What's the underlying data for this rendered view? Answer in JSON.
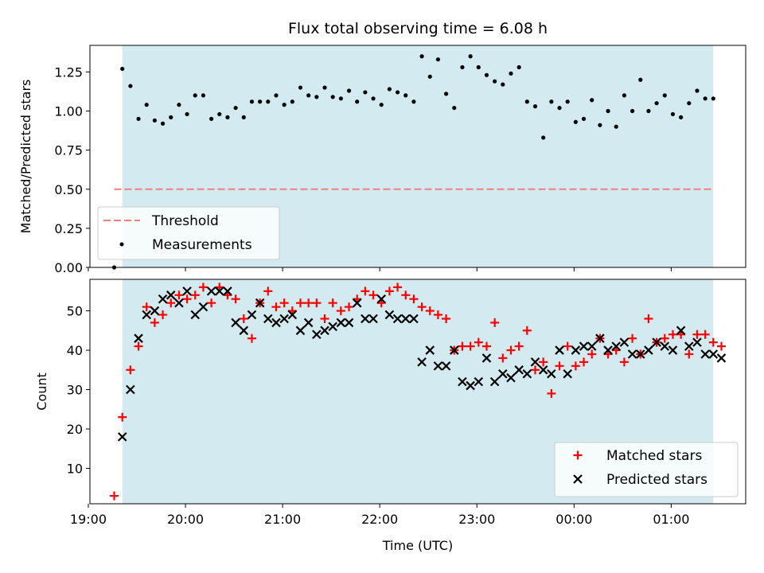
{
  "chart_data": [
    {
      "type": "scatter",
      "title": "Flux total observing time = 6.08 h",
      "ylabel": "Matched/Predicted stars",
      "ylim": [
        0,
        1.42
      ],
      "yticks": [
        "0.00",
        "0.25",
        "0.50",
        "0.75",
        "1.00",
        "1.25"
      ],
      "shaded_span": [
        "19:21",
        "01:26"
      ],
      "shade_color": "#d3eaf0",
      "threshold": {
        "name": "Threshold",
        "value": 0.5,
        "x_range": [
          "19:16",
          "01:26"
        ],
        "color": "#f08080"
      },
      "series": [
        {
          "name": "Measurements",
          "color": "#000000",
          "points": [
            [
              "19:16",
              0.0
            ],
            [
              "19:21",
              1.27
            ],
            [
              "19:26",
              1.16
            ],
            [
              "19:31",
              0.95
            ],
            [
              "19:36",
              1.04
            ],
            [
              "19:41",
              0.94
            ],
            [
              "19:46",
              0.92
            ],
            [
              "19:51",
              0.96
            ],
            [
              "19:56",
              1.04
            ],
            [
              "20:01",
              0.98
            ],
            [
              "20:06",
              1.1
            ],
            [
              "20:11",
              1.1
            ],
            [
              "20:16",
              0.95
            ],
            [
              "20:21",
              0.98
            ],
            [
              "20:26",
              0.96
            ],
            [
              "20:31",
              1.02
            ],
            [
              "20:36",
              0.96
            ],
            [
              "20:41",
              1.06
            ],
            [
              "20:46",
              1.06
            ],
            [
              "20:51",
              1.06
            ],
            [
              "20:56",
              1.1
            ],
            [
              "21:01",
              1.04
            ],
            [
              "21:06",
              1.06
            ],
            [
              "21:11",
              1.15
            ],
            [
              "21:16",
              1.1
            ],
            [
              "21:21",
              1.09
            ],
            [
              "21:26",
              1.15
            ],
            [
              "21:31",
              1.09
            ],
            [
              "21:36",
              1.08
            ],
            [
              "21:41",
              1.13
            ],
            [
              "21:46",
              1.06
            ],
            [
              "21:51",
              1.12
            ],
            [
              "21:56",
              1.08
            ],
            [
              "22:01",
              1.04
            ],
            [
              "22:06",
              1.14
            ],
            [
              "22:11",
              1.12
            ],
            [
              "22:16",
              1.1
            ],
            [
              "22:21",
              1.06
            ],
            [
              "22:26",
              1.35
            ],
            [
              "22:31",
              1.22
            ],
            [
              "22:36",
              1.33
            ],
            [
              "22:41",
              1.11
            ],
            [
              "22:46",
              1.02
            ],
            [
              "22:51",
              1.28
            ],
            [
              "22:56",
              1.35
            ],
            [
              "23:01",
              1.28
            ],
            [
              "23:06",
              1.23
            ],
            [
              "23:11",
              1.19
            ],
            [
              "23:16",
              1.17
            ],
            [
              "23:21",
              1.24
            ],
            [
              "23:26",
              1.28
            ],
            [
              "23:31",
              1.06
            ],
            [
              "23:36",
              1.03
            ],
            [
              "23:41",
              0.83
            ],
            [
              "23:46",
              1.06
            ],
            [
              "23:51",
              1.02
            ],
            [
              "23:56",
              1.06
            ],
            [
              "00:01",
              0.93
            ],
            [
              "00:06",
              0.95
            ],
            [
              "00:11",
              1.07
            ],
            [
              "00:16",
              0.91
            ],
            [
              "00:21",
              1.0
            ],
            [
              "00:26",
              0.9
            ],
            [
              "00:31",
              1.1
            ],
            [
              "00:36",
              1.0
            ],
            [
              "00:41",
              1.2
            ],
            [
              "00:46",
              1.0
            ],
            [
              "00:51",
              1.05
            ],
            [
              "00:56",
              1.1
            ],
            [
              "01:01",
              0.98
            ],
            [
              "01:06",
              0.96
            ],
            [
              "01:11",
              1.05
            ],
            [
              "01:16",
              1.13
            ],
            [
              "01:21",
              1.08
            ],
            [
              "01:26",
              1.08
            ]
          ]
        }
      ],
      "legend": {
        "position": "lower-left",
        "entries": [
          "Threshold",
          "Measurements"
        ]
      }
    },
    {
      "type": "scatter",
      "xlabel": "Time (UTC)",
      "ylabel": "Count",
      "ylim": [
        1,
        58
      ],
      "yticks": [
        "10",
        "20",
        "30",
        "40",
        "50"
      ],
      "xlim": [
        "19:01",
        "01:46"
      ],
      "xticks": [
        "19:00",
        "20:00",
        "21:00",
        "22:00",
        "23:00",
        "00:00",
        "01:00"
      ],
      "shaded_span": [
        "19:21",
        "01:26"
      ],
      "shade_color": "#d3eaf0",
      "series": [
        {
          "name": "Matched stars",
          "marker": "plus",
          "color": "#ff0000",
          "points": [
            [
              "19:16",
              3
            ],
            [
              "19:21",
              23
            ],
            [
              "19:26",
              35
            ],
            [
              "19:31",
              41
            ],
            [
              "19:36",
              51
            ],
            [
              "19:41",
              47
            ],
            [
              "19:46",
              49
            ],
            [
              "19:51",
              52
            ],
            [
              "19:56",
              54
            ],
            [
              "20:01",
              53
            ],
            [
              "20:06",
              54
            ],
            [
              "20:11",
              56
            ],
            [
              "20:16",
              52
            ],
            [
              "20:21",
              56
            ],
            [
              "20:26",
              54
            ],
            [
              "20:31",
              53
            ],
            [
              "20:36",
              48
            ],
            [
              "20:41",
              43
            ],
            [
              "20:46",
              52
            ],
            [
              "20:51",
              55
            ],
            [
              "20:56",
              51
            ],
            [
              "21:01",
              52
            ],
            [
              "21:06",
              50
            ],
            [
              "21:11",
              52
            ],
            [
              "21:16",
              52
            ],
            [
              "21:21",
              52
            ],
            [
              "21:26",
              48
            ],
            [
              "21:31",
              52
            ],
            [
              "21:36",
              50
            ],
            [
              "21:41",
              51
            ],
            [
              "21:46",
              53
            ],
            [
              "21:51",
              55
            ],
            [
              "21:56",
              54
            ],
            [
              "22:01",
              52
            ],
            [
              "22:06",
              55
            ],
            [
              "22:11",
              56
            ],
            [
              "22:16",
              54
            ],
            [
              "22:21",
              53
            ],
            [
              "22:26",
              51
            ],
            [
              "22:31",
              50
            ],
            [
              "22:36",
              49
            ],
            [
              "22:41",
              48
            ],
            [
              "22:46",
              40
            ],
            [
              "22:51",
              41
            ],
            [
              "22:56",
              41
            ],
            [
              "23:01",
              42
            ],
            [
              "23:06",
              41
            ],
            [
              "23:11",
              47
            ],
            [
              "23:16",
              38
            ],
            [
              "23:21",
              40
            ],
            [
              "23:26",
              41
            ],
            [
              "23:31",
              45
            ],
            [
              "23:36",
              35
            ],
            [
              "23:41",
              37
            ],
            [
              "23:46",
              29
            ],
            [
              "23:51",
              36
            ],
            [
              "23:56",
              41
            ],
            [
              "00:01",
              36
            ],
            [
              "00:06",
              37
            ],
            [
              "00:11",
              39
            ],
            [
              "00:16",
              43
            ],
            [
              "00:21",
              39
            ],
            [
              "00:26",
              40
            ],
            [
              "00:31",
              37
            ],
            [
              "00:36",
              43
            ],
            [
              "00:41",
              39
            ],
            [
              "00:46",
              48
            ],
            [
              "00:51",
              42
            ],
            [
              "00:56",
              43
            ],
            [
              "01:01",
              44
            ],
            [
              "01:06",
              44
            ],
            [
              "01:11",
              39
            ],
            [
              "01:16",
              44
            ],
            [
              "01:21",
              44
            ],
            [
              "01:26",
              42
            ],
            [
              "01:31",
              41
            ]
          ]
        },
        {
          "name": "Predicted stars",
          "marker": "x",
          "color": "#000000",
          "points": [
            [
              "19:21",
              18
            ],
            [
              "19:26",
              30
            ],
            [
              "19:31",
              43
            ],
            [
              "19:36",
              49
            ],
            [
              "19:41",
              50
            ],
            [
              "19:46",
              53
            ],
            [
              "19:51",
              54
            ],
            [
              "19:56",
              52
            ],
            [
              "20:01",
              55
            ],
            [
              "20:06",
              49
            ],
            [
              "20:11",
              51
            ],
            [
              "20:16",
              55
            ],
            [
              "20:21",
              55
            ],
            [
              "20:26",
              55
            ],
            [
              "20:31",
              47
            ],
            [
              "20:36",
              45
            ],
            [
              "20:41",
              49
            ],
            [
              "20:46",
              52
            ],
            [
              "20:51",
              48
            ],
            [
              "20:56",
              47
            ],
            [
              "21:01",
              48
            ],
            [
              "21:06",
              49
            ],
            [
              "21:11",
              45
            ],
            [
              "21:16",
              47
            ],
            [
              "21:21",
              44
            ],
            [
              "21:26",
              45
            ],
            [
              "21:31",
              46
            ],
            [
              "21:36",
              47
            ],
            [
              "21:41",
              47
            ],
            [
              "21:46",
              52
            ],
            [
              "21:51",
              48
            ],
            [
              "21:56",
              48
            ],
            [
              "22:01",
              53
            ],
            [
              "22:06",
              49
            ],
            [
              "22:11",
              48
            ],
            [
              "22:16",
              48
            ],
            [
              "22:21",
              48
            ],
            [
              "22:26",
              37
            ],
            [
              "22:31",
              40
            ],
            [
              "22:36",
              36
            ],
            [
              "22:41",
              36
            ],
            [
              "22:46",
              40
            ],
            [
              "22:51",
              32
            ],
            [
              "22:56",
              31
            ],
            [
              "23:01",
              32
            ],
            [
              "23:06",
              38
            ],
            [
              "23:11",
              32
            ],
            [
              "23:16",
              34
            ],
            [
              "23:21",
              33
            ],
            [
              "23:26",
              35
            ],
            [
              "23:31",
              34
            ],
            [
              "23:36",
              37
            ],
            [
              "23:41",
              35
            ],
            [
              "23:46",
              34
            ],
            [
              "23:51",
              40
            ],
            [
              "23:56",
              34
            ],
            [
              "00:01",
              40
            ],
            [
              "00:06",
              41
            ],
            [
              "00:11",
              41
            ],
            [
              "00:16",
              43
            ],
            [
              "00:21",
              40
            ],
            [
              "00:26",
              41
            ],
            [
              "00:31",
              42
            ],
            [
              "00:36",
              39
            ],
            [
              "00:41",
              39
            ],
            [
              "00:46",
              40
            ],
            [
              "00:51",
              42
            ],
            [
              "00:56",
              41
            ],
            [
              "01:01",
              40
            ],
            [
              "01:06",
              45
            ],
            [
              "01:11",
              41
            ],
            [
              "01:16",
              42
            ],
            [
              "01:21",
              39
            ],
            [
              "01:26",
              39
            ],
            [
              "01:31",
              38
            ]
          ]
        }
      ],
      "legend": {
        "position": "lower-right",
        "entries": [
          "Matched stars",
          "Predicted stars"
        ]
      }
    }
  ]
}
